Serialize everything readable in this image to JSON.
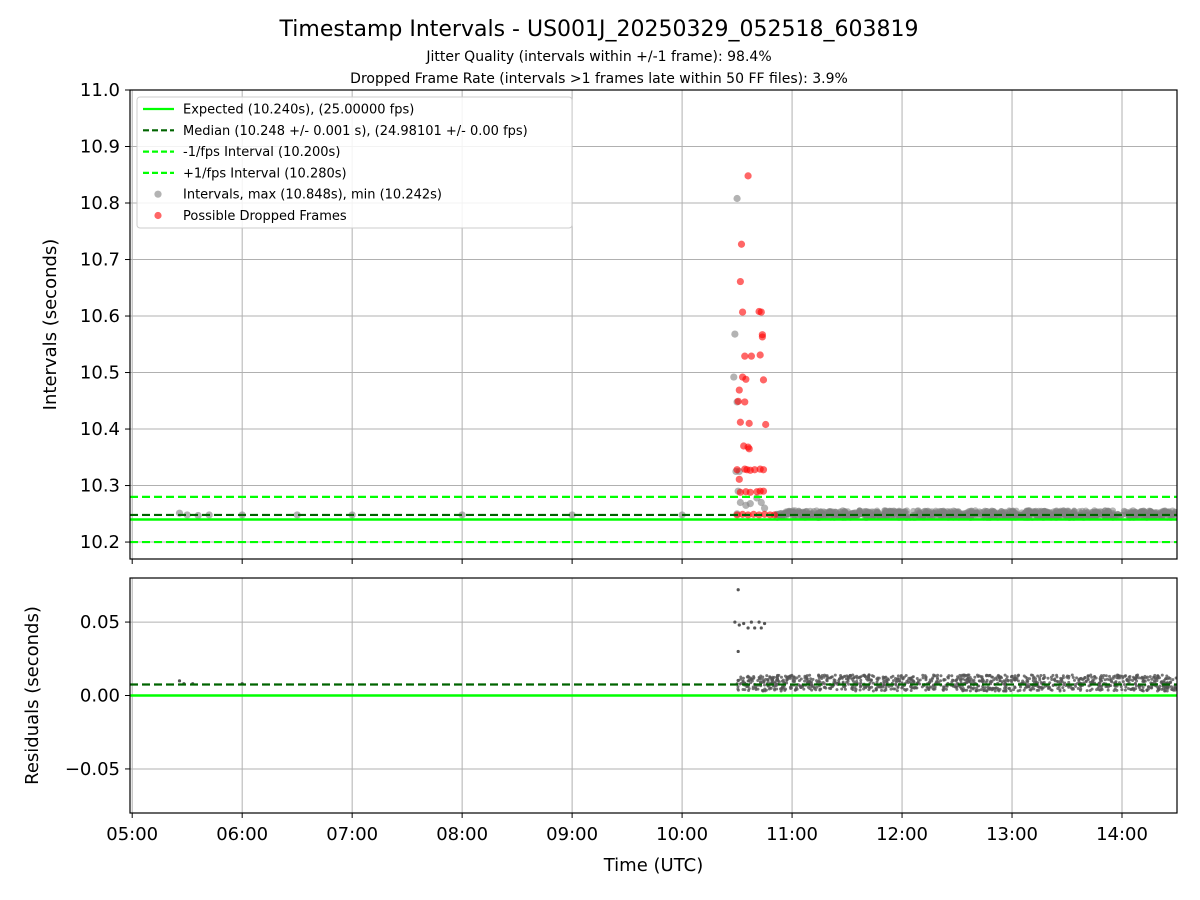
{
  "title": "Timestamp Intervals - US001J_20250329_052518_603819",
  "subtitle1": "Jitter Quality (intervals within +/-1 frame): 98.4%",
  "subtitle2": "Dropped Frame Rate (intervals >1 frames late within 50 FF files): 3.9%",
  "colors": {
    "expected": "#00ff00",
    "median": "#006400",
    "bounds": "#00ff00",
    "intervals": "#808080",
    "dropped": "#ff0000",
    "grid": "#b0b0b0",
    "residual_points": "#555555"
  },
  "chart_data": [
    {
      "type": "scatter",
      "name": "intervals",
      "title": "",
      "xlabel": "",
      "ylabel": "Intervals (seconds)",
      "x_ticks": [
        "05:00",
        "06:00",
        "07:00",
        "08:00",
        "09:00",
        "10:00",
        "11:00",
        "12:00",
        "13:00",
        "14:00"
      ],
      "y_ticks": [
        "10.2",
        "10.3",
        "10.4",
        "10.5",
        "10.6",
        "10.7",
        "10.8",
        "10.9",
        "11.0"
      ],
      "xlim_hours": [
        4.98,
        14.5
      ],
      "ylim": [
        10.17,
        11.0
      ],
      "grid": true,
      "legend_position": "top-left",
      "legend": [
        "Expected (10.240s), (25.00000 fps)",
        "Median (10.248 +/- 0.001 s), (24.98101 +/- 0.00 fps)",
        "-1/fps Interval (10.200s)",
        "+1/fps Interval (10.280s)",
        "Intervals, max (10.848s), min (10.242s)",
        "Possible Dropped Frames"
      ],
      "reference_lines": {
        "expected": 10.24,
        "median": 10.248,
        "minus_one_frame": 10.2,
        "plus_one_frame": 10.28
      },
      "dense_band": {
        "x_range_hours": [
          10.85,
          14.5
        ],
        "y_range": [
          10.243,
          10.256
        ]
      },
      "intervals_points": [
        [
          5.43,
          10.251
        ],
        [
          5.5,
          10.248
        ],
        [
          5.6,
          10.247
        ],
        [
          5.7,
          10.248
        ],
        [
          6.0,
          10.248
        ],
        [
          6.5,
          10.248
        ],
        [
          7.0,
          10.248
        ],
        [
          8.0,
          10.248
        ],
        [
          9.0,
          10.248
        ],
        [
          10.0,
          10.248
        ],
        [
          10.5,
          10.808
        ],
        [
          10.48,
          10.568
        ],
        [
          10.47,
          10.492
        ],
        [
          10.5,
          10.448
        ],
        [
          10.49,
          10.325
        ],
        [
          10.52,
          10.325
        ],
        [
          10.51,
          10.29
        ],
        [
          10.53,
          10.27
        ],
        [
          10.5,
          10.25
        ],
        [
          10.58,
          10.265
        ],
        [
          10.62,
          10.268
        ],
        [
          10.68,
          10.278
        ],
        [
          10.72,
          10.27
        ],
        [
          10.75,
          10.26
        ]
      ],
      "dropped_points": [
        [
          10.6,
          10.848
        ],
        [
          10.54,
          10.727
        ],
        [
          10.53,
          10.661
        ],
        [
          10.55,
          10.607
        ],
        [
          10.7,
          10.608
        ],
        [
          10.72,
          10.607
        ],
        [
          10.73,
          10.567
        ],
        [
          10.73,
          10.563
        ],
        [
          10.57,
          10.529
        ],
        [
          10.63,
          10.529
        ],
        [
          10.71,
          10.531
        ],
        [
          10.55,
          10.492
        ],
        [
          10.58,
          10.488
        ],
        [
          10.74,
          10.487
        ],
        [
          10.52,
          10.469
        ],
        [
          10.51,
          10.449
        ],
        [
          10.57,
          10.448
        ],
        [
          10.53,
          10.412
        ],
        [
          10.61,
          10.41
        ],
        [
          10.76,
          10.408
        ],
        [
          10.56,
          10.37
        ],
        [
          10.6,
          10.368
        ],
        [
          10.61,
          10.365
        ],
        [
          10.5,
          10.328
        ],
        [
          10.57,
          10.329
        ],
        [
          10.59,
          10.328
        ],
        [
          10.62,
          10.327
        ],
        [
          10.66,
          10.328
        ],
        [
          10.71,
          10.329
        ],
        [
          10.74,
          10.328
        ],
        [
          10.52,
          10.311
        ],
        [
          10.53,
          10.288
        ],
        [
          10.58,
          10.289
        ],
        [
          10.62,
          10.288
        ],
        [
          10.68,
          10.289
        ],
        [
          10.71,
          10.29
        ],
        [
          10.74,
          10.29
        ],
        [
          10.5,
          10.248
        ],
        [
          10.55,
          10.249
        ],
        [
          10.6,
          10.248
        ],
        [
          10.65,
          10.249
        ],
        [
          10.7,
          10.248
        ],
        [
          10.75,
          10.249
        ],
        [
          10.8,
          10.248
        ],
        [
          10.84,
          10.248
        ]
      ]
    },
    {
      "type": "scatter",
      "name": "residuals",
      "title": "",
      "xlabel": "Time (UTC)",
      "ylabel": "Residuals (seconds)",
      "x_ticks": [
        "05:00",
        "06:00",
        "07:00",
        "08:00",
        "09:00",
        "10:00",
        "11:00",
        "12:00",
        "13:00",
        "14:00"
      ],
      "y_ticks": [
        "−0.05",
        "0.00",
        "0.05"
      ],
      "xlim_hours": [
        4.98,
        14.5
      ],
      "ylim": [
        -0.08,
        0.08
      ],
      "grid": true,
      "reference_lines": {
        "zero": 0.0,
        "median_offset": 0.0075
      },
      "dense_band": {
        "x_range_hours": [
          10.5,
          14.5
        ],
        "y_range": [
          0.003,
          0.014
        ]
      },
      "residual_points": [
        [
          5.43,
          0.01
        ],
        [
          5.47,
          0.008
        ],
        [
          5.55,
          0.008
        ],
        [
          6.0,
          0.008
        ],
        [
          10.51,
          0.072
        ],
        [
          10.48,
          0.05
        ],
        [
          10.52,
          0.048
        ],
        [
          10.56,
          0.049
        ],
        [
          10.6,
          0.046
        ],
        [
          10.63,
          0.05
        ],
        [
          10.66,
          0.046
        ],
        [
          10.7,
          0.05
        ],
        [
          10.72,
          0.046
        ],
        [
          10.75,
          0.049
        ],
        [
          10.51,
          0.03
        ],
        [
          11.7,
          0.014
        ],
        [
          13.0,
          0.013
        ]
      ]
    }
  ]
}
